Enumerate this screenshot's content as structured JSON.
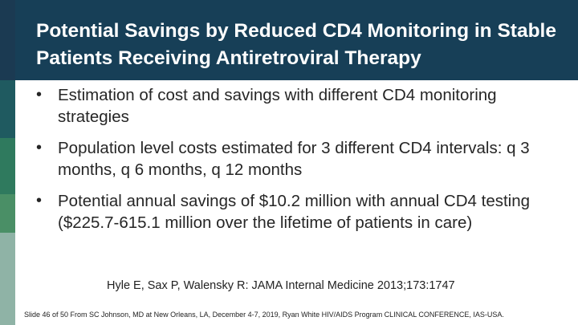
{
  "slide": {
    "title": "Potential Savings by Reduced CD4 Monitoring in Stable Patients Receiving Antiretroviral Therapy",
    "bullet_glyph": "•",
    "bullets": [
      "Estimation of cost and savings with different CD4 monitoring strategies",
      "Population level costs estimated for 3 different CD4 intervals: q 3 months, q 6 months, q 12 months",
      "Potential annual savings of $10.2 million with annual CD4 testing ($225.7-615.1 million over the lifetime of patients in care)"
    ],
    "citation": "Hyle E, Sax P, Walensky R: JAMA Internal Medicine 2013;173:1747",
    "footer": "Slide 46 of 50 From SC Johnson, MD at New Orleans, LA, December 4-7, 2019, Ryan White HIV/AIDS Program CLINICAL CONFERENCE, IAS-USA."
  },
  "colors": {
    "title_bar": "#173f57",
    "title_text": "#ffffff",
    "strip": [
      "#1b3a52",
      "#1f5a60",
      "#2f7a5e",
      "#4a8f66",
      "#8fb3a6"
    ]
  }
}
